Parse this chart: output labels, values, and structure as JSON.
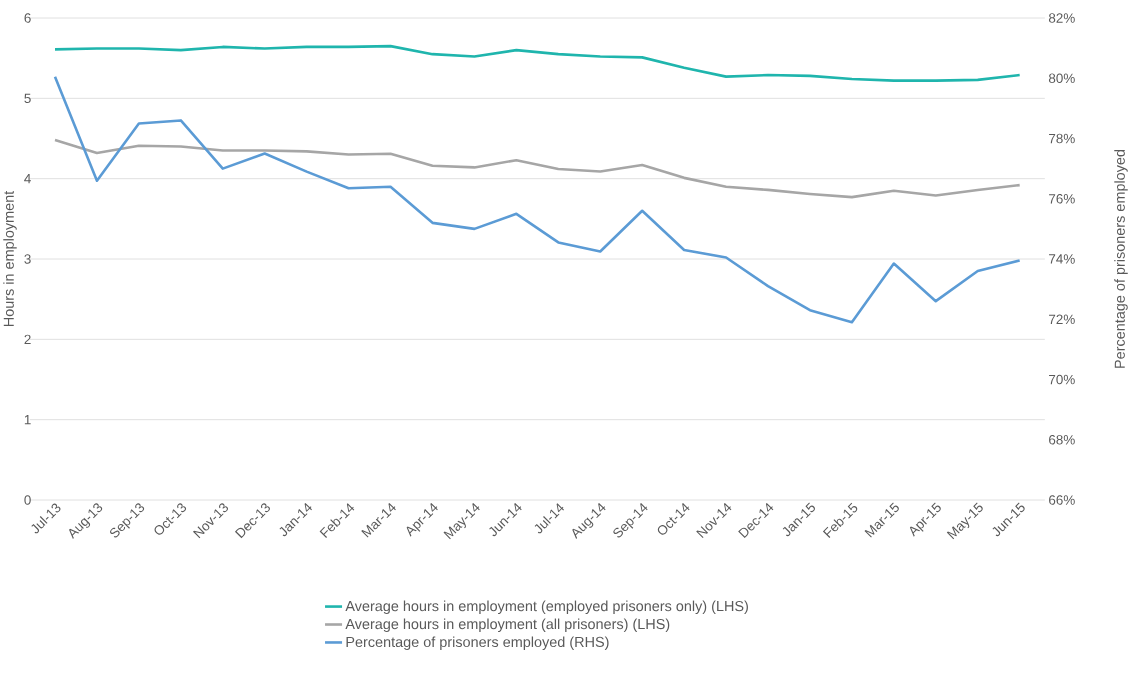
{
  "chart_data": {
    "type": "line",
    "ylabel": "Hours in employment",
    "y2label": "Percentage of prisoners employed",
    "categories": [
      "Jul-13",
      "Aug-13",
      "Sep-13",
      "Oct-13",
      "Nov-13",
      "Dec-13",
      "Jan-14",
      "Feb-14",
      "Mar-14",
      "Apr-14",
      "May-14",
      "Jun-14",
      "Jul-14",
      "Aug-14",
      "Sep-14",
      "Oct-14",
      "Nov-14",
      "Dec-14",
      "Jan-15",
      "Feb-15",
      "Mar-15",
      "Apr-15",
      "May-15",
      "Jun-15"
    ],
    "series": [
      {
        "name": "Average hours in employment (employed prisoners only) (LHS)",
        "color": "#1fb5ad",
        "values": [
          5.61,
          5.62,
          5.62,
          5.6,
          5.64,
          5.62,
          5.64,
          5.64,
          5.65,
          5.55,
          5.52,
          5.6,
          5.55,
          5.52,
          5.51,
          5.38,
          5.27,
          5.29,
          5.28,
          5.24,
          5.22,
          5.22,
          5.23,
          5.29
        ]
      },
      {
        "name": "Average hours in employment (all prisoners) (LHS)",
        "color": "#a6a6a6",
        "values": [
          4.48,
          4.32,
          4.41,
          4.4,
          4.35,
          4.35,
          4.34,
          4.3,
          4.31,
          4.16,
          4.14,
          4.23,
          4.12,
          4.09,
          4.17,
          4.01,
          3.9,
          3.86,
          3.81,
          3.77,
          3.85,
          3.79,
          3.86,
          3.92
        ]
      },
      {
        "name": "Percentage of prisoners employed (RHS)",
        "color": "#5b9bd5",
        "axis": "y2",
        "values": [
          80.05,
          76.6,
          78.5,
          78.6,
          77.0,
          77.5,
          76.9,
          76.35,
          76.4,
          75.2,
          75.0,
          75.5,
          74.55,
          74.25,
          75.6,
          74.3,
          74.05,
          73.1,
          72.3,
          71.9,
          73.85,
          72.6,
          73.6,
          73.95
        ]
      }
    ],
    "ylim": [
      0,
      6
    ],
    "yticks": [
      0,
      1,
      2,
      3,
      4,
      5,
      6
    ],
    "y2lim": [
      66,
      82
    ],
    "y2ticks": [
      {
        "value": 66,
        "label": "66%"
      },
      {
        "value": 68,
        "label": "68%"
      },
      {
        "value": 70,
        "label": "70%"
      },
      {
        "value": 72,
        "label": "72%"
      },
      {
        "value": 74,
        "label": "74%"
      },
      {
        "value": 76,
        "label": "76%"
      },
      {
        "value": 78,
        "label": "78%"
      },
      {
        "value": 80,
        "label": "80%"
      },
      {
        "value": 82,
        "label": "82%"
      }
    ],
    "grid": "y",
    "legend": "bottom",
    "marker": "none",
    "line_style": "solid"
  }
}
